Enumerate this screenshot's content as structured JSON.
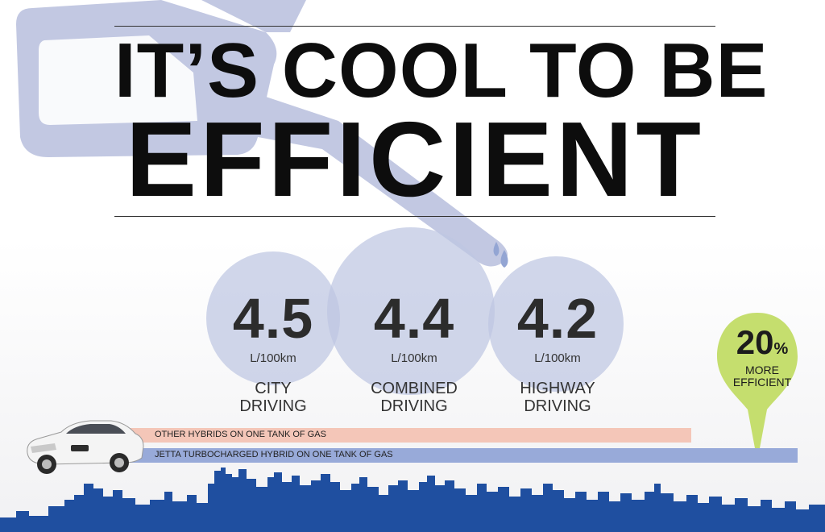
{
  "headline": {
    "line1": "IT’S COOL TO BE",
    "line2": "EFFICIENT"
  },
  "stats": [
    {
      "value": "4.5",
      "unit": "L/100km",
      "label_line1": "CITY",
      "label_line2": "DRIVING"
    },
    {
      "value": "4.4",
      "unit": "L/100km",
      "label_line1": "COMBINED",
      "label_line2": "DRIVING"
    },
    {
      "value": "4.2",
      "unit": "L/100km",
      "label_line1": "HIGHWAY",
      "label_line2": "DRIVING"
    }
  ],
  "bars": {
    "other_label": "OTHER HYBRIDS ON ONE TANK OF GAS",
    "jetta_label": "JETTA TURBOCHARGED HYBRID ON ONE TANK OF GAS"
  },
  "badge": {
    "percent": "20",
    "percent_sign": "%",
    "line1": "MORE",
    "line2": "EFFICIENT"
  },
  "colors": {
    "nozzle": "#c2c8e2",
    "circle": "#bec6e2",
    "other_bar": "#f4c6b8",
    "jetta_bar": "#98aad9",
    "badge": "#c5de6e",
    "skyline": "#1f4fa0"
  },
  "icons": [
    "fuel-nozzle-icon",
    "fuel-drop-icon",
    "car-image",
    "map-pin-icon",
    "city-skyline"
  ]
}
